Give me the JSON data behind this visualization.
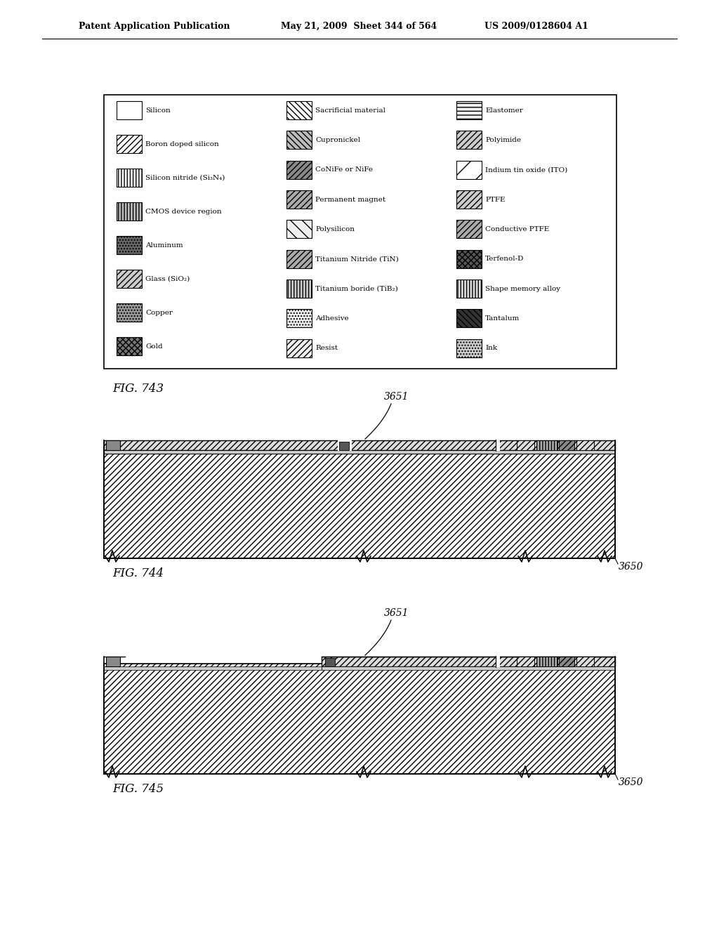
{
  "page_header_left": "Patent Application Publication",
  "page_header_mid": "May 21, 2009  Sheet 344 of 564",
  "page_header_right": "US 2009/0128604 A1",
  "fig743_label": "FIG. 743",
  "fig744_label": "FIG. 744",
  "fig745_label": "FIG. 745",
  "label_3651": "3651",
  "label_3650": "3650",
  "background_color": "white",
  "legend_col0": [
    {
      "name": "Silicon",
      "hatch": "",
      "fc": "white"
    },
    {
      "name": "Boron doped silicon",
      "hatch": "////",
      "fc": "white"
    },
    {
      "name": "Silicon nitride (Si₃N₄)",
      "hatch": "||||",
      "fc": "white"
    },
    {
      "name": "CMOS device region",
      "hatch": "||||",
      "fc": "#bbbbbb"
    },
    {
      "name": "Aluminum",
      "hatch": "....",
      "fc": "#666666"
    },
    {
      "name": "Glass (SiO₂)",
      "hatch": "////",
      "fc": "#cccccc"
    },
    {
      "name": "Copper",
      "hatch": "....",
      "fc": "#999999"
    },
    {
      "name": "Gold",
      "hatch": "xxxx",
      "fc": "#777777"
    }
  ],
  "legend_col1": [
    {
      "name": "Sacrificial material",
      "hatch": "\\\\\\\\",
      "fc": "white"
    },
    {
      "name": "Cupronickel",
      "hatch": "\\\\\\\\",
      "fc": "#bbbbbb"
    },
    {
      "name": "CoNiFe or NiFe",
      "hatch": "////",
      "fc": "#888888"
    },
    {
      "name": "Permanent magnet",
      "hatch": "////",
      "fc": "#aaaaaa"
    },
    {
      "name": "Polysilicon",
      "hatch": "\\\\",
      "fc": "#eeeeee"
    },
    {
      "name": "Titanium Nitride (TiN)",
      "hatch": "////",
      "fc": "#aaaaaa"
    },
    {
      "name": "Titanium boride (TiB₂)",
      "hatch": "||||",
      "fc": "#cccccc"
    },
    {
      "name": "Adhesive",
      "hatch": "....",
      "fc": "#eeeeee"
    },
    {
      "name": "Resist",
      "hatch": "////",
      "fc": "#eeeeee"
    }
  ],
  "legend_col2": [
    {
      "name": "Elastomer",
      "hatch": "---",
      "fc": "#eeeeee"
    },
    {
      "name": "Polyimide",
      "hatch": "////",
      "fc": "#cccccc"
    },
    {
      "name": "Indium tin oxide (ITO)",
      "hatch": "/",
      "fc": "white"
    },
    {
      "name": "PTFE",
      "hatch": "////",
      "fc": "#cccccc"
    },
    {
      "name": "Conductive PTFE",
      "hatch": "////",
      "fc": "#aaaaaa"
    },
    {
      "name": "Terfenol-D",
      "hatch": "xxxx",
      "fc": "#555555"
    },
    {
      "name": "Shape memory alloy",
      "hatch": "||||",
      "fc": "#dddddd"
    },
    {
      "name": "Tantalum",
      "hatch": "\\\\\\\\",
      "fc": "#333333"
    },
    {
      "name": "Ink",
      "hatch": "....",
      "fc": "#cccccc"
    }
  ]
}
